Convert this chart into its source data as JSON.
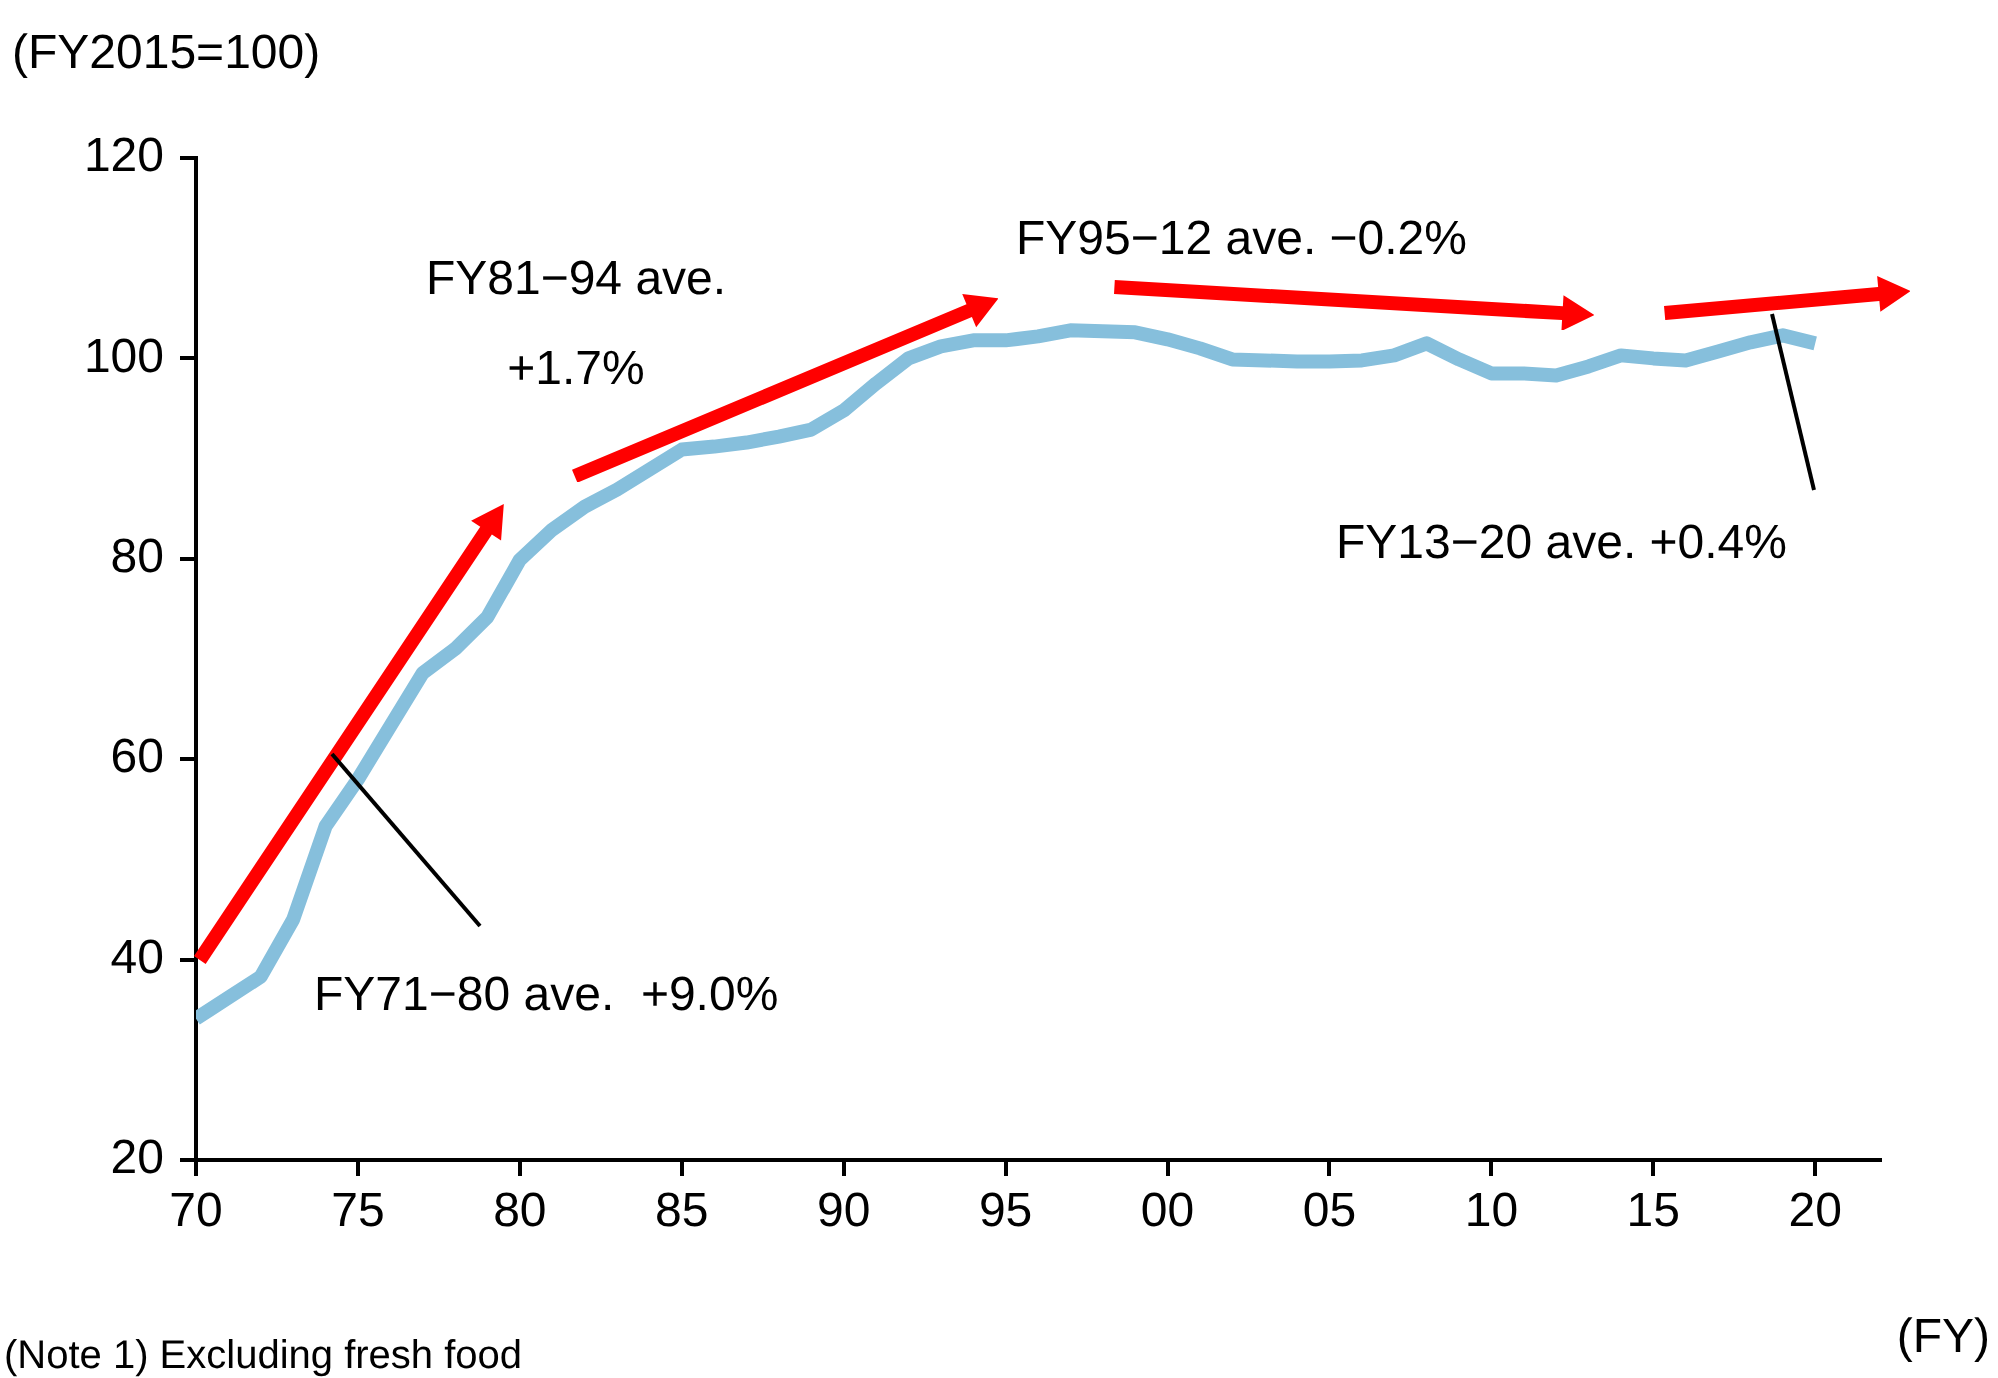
{
  "chart_data": {
    "type": "line",
    "ylabel": "(FY2015=100)",
    "xlabel": "(FY)",
    "x": [
      1970,
      1971,
      1972,
      1973,
      1974,
      1975,
      1976,
      1977,
      1978,
      1979,
      1980,
      1981,
      1982,
      1983,
      1984,
      1985,
      1986,
      1987,
      1988,
      1989,
      1990,
      1991,
      1992,
      1993,
      1994,
      1995,
      1996,
      1997,
      1998,
      1999,
      2000,
      2001,
      2002,
      2003,
      2004,
      2005,
      2006,
      2007,
      2008,
      2009,
      2010,
      2011,
      2012,
      2013,
      2014,
      2015,
      2016,
      2017,
      2018,
      2019,
      2020
    ],
    "series": [
      {
        "color": "#86bfdc",
        "values": [
          34.1,
          36.2,
          38.3,
          44,
          53.3,
          58,
          63.3,
          68.6,
          71,
          74.2,
          79.9,
          82.9,
          85.2,
          86.9,
          88.9,
          90.9,
          91.2,
          91.6,
          92.2,
          92.9,
          94.8,
          97.5,
          100,
          101.2,
          101.8,
          101.8,
          102.2,
          102.8,
          102.7,
          102.6,
          101.9,
          101,
          99.9,
          99.8,
          99.7,
          99.7,
          99.8,
          100.3,
          101.5,
          99.9,
          98.5,
          98.5,
          98.3,
          99.2,
          100.3,
          100,
          99.8,
          100.7,
          101.6,
          102.3,
          101.5
        ]
      }
    ],
    "xlim": [
      1970,
      2022
    ],
    "xticks": [
      {
        "value": 1970,
        "label": "70"
      },
      {
        "value": 1975,
        "label": "75"
      },
      {
        "value": 1980,
        "label": "80"
      },
      {
        "value": 1985,
        "label": "85"
      },
      {
        "value": 1990,
        "label": "90"
      },
      {
        "value": 1995,
        "label": "95"
      },
      {
        "value": 2000,
        "label": "00"
      },
      {
        "value": 2005,
        "label": "05"
      },
      {
        "value": 2010,
        "label": "10"
      },
      {
        "value": 2015,
        "label": "15"
      },
      {
        "value": 2020,
        "label": "20"
      }
    ],
    "ylim": [
      20,
      120
    ],
    "yticks": [
      20,
      40,
      60,
      80,
      100,
      120
    ],
    "annotations": [
      "FY71−80 ave.  +9.0%",
      "FY81−94 ave. +1.7%",
      "FY95−12 ave. −0.2%",
      "FY13−20 ave. +0.4%",
      "(Note 1) Excluding fresh food"
    ],
    "marker": "none",
    "line_style": "solid",
    "grid": false,
    "legend": false
  }
}
